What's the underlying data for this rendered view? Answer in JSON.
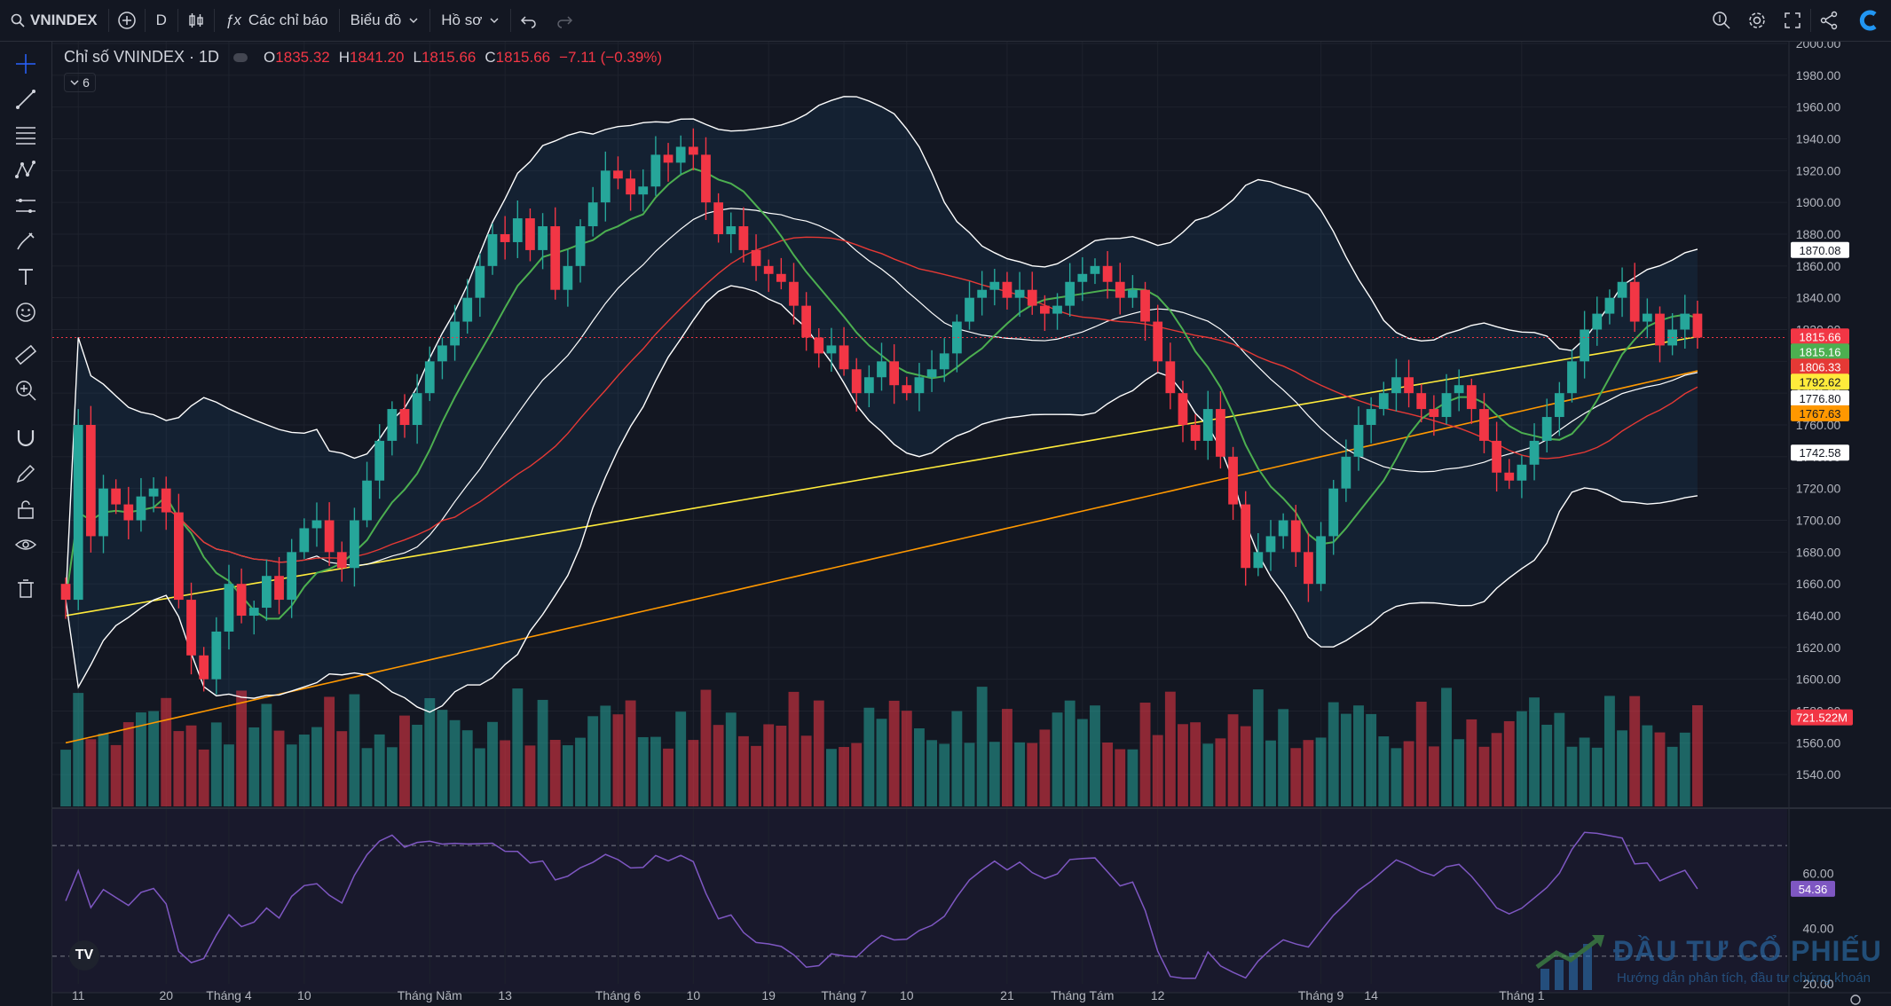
{
  "toolbar": {
    "symbol": "VNINDEX",
    "interval": "D",
    "indicators_label": "Các chỉ báo",
    "chart_label": "Biểu đồ",
    "profile_label": "Hồ sơ"
  },
  "legend": {
    "title": "Chỉ số VNINDEX · 1D",
    "o_label": "O",
    "o": "1835.32",
    "h_label": "H",
    "h": "1841.20",
    "l_label": "L",
    "l": "1815.66",
    "c_label": "C",
    "c": "1815.66",
    "change": "−7.11 (−0.39%)",
    "collapsed_count": "6"
  },
  "watermark": {
    "title": "ĐẦU TƯ CỔ PHIẾU",
    "subtitle": "Hướng dẫn phân tích, đầu tư chứng khoán"
  },
  "colors": {
    "background": "#131722",
    "up": "#26a69a",
    "down": "#f23645",
    "ma_fast": "#4caf50",
    "ma_mid": "#e53935",
    "ma_long": "#ffeb3b",
    "ma_200": "#ff9800",
    "bands": "#ffffff",
    "rsi": "#7e57c2"
  },
  "price_badges": [
    {
      "value": "1870.08",
      "price": 1870.08,
      "bg": "#ffffff",
      "fg": "#131722"
    },
    {
      "value": "1815.66",
      "price": 1815.66,
      "bg": "#f23645",
      "fg": "#ffffff"
    },
    {
      "value": "1815.16",
      "price": 1815.16,
      "bg": "#4caf50",
      "fg": "#ffffff"
    },
    {
      "value": "1806.33",
      "price": 1806.33,
      "bg": "#e53935",
      "fg": "#ffffff"
    },
    {
      "value": "1792.62",
      "price": 1792.62,
      "bg": "#ffeb3b",
      "fg": "#131722"
    },
    {
      "value": "1776.80",
      "price": 1776.8,
      "bg": "#ffffff",
      "fg": "#131722"
    },
    {
      "value": "1767.63",
      "price": 1767.63,
      "bg": "#ff9800",
      "fg": "#131722"
    },
    {
      "value": "1742.58",
      "price": 1742.58,
      "bg": "#ffffff",
      "fg": "#131722"
    }
  ],
  "volume_badge": "721.522M",
  "rsi_badge": {
    "value": "54.36",
    "level": 54.36
  },
  "chart_data": {
    "type": "candlestick",
    "ylim": [
      1520,
      2000
    ],
    "y_ticks": [
      1540,
      1560,
      1580,
      1600,
      1620,
      1640,
      1660,
      1680,
      1700,
      1720,
      1740,
      1760,
      1780,
      1800,
      1820,
      1840,
      1860,
      1880,
      1900,
      1920,
      1940,
      1960,
      1980,
      2000
    ],
    "x_labels": [
      {
        "label": "11",
        "index": 1
      },
      {
        "label": "20",
        "index": 8
      },
      {
        "label": "Tháng 4",
        "index": 13
      },
      {
        "label": "10",
        "index": 19
      },
      {
        "label": "Tháng Năm",
        "index": 29
      },
      {
        "label": "13",
        "index": 35
      },
      {
        "label": "Tháng 6",
        "index": 44
      },
      {
        "label": "10",
        "index": 50
      },
      {
        "label": "19",
        "index": 56
      },
      {
        "label": "Tháng 7",
        "index": 62
      },
      {
        "label": "10",
        "index": 67
      },
      {
        "label": "21",
        "index": 75
      },
      {
        "label": "Tháng Tám",
        "index": 81
      },
      {
        "label": "12",
        "index": 87
      },
      {
        "label": "Tháng 9",
        "index": 100
      },
      {
        "label": "14",
        "index": 104
      },
      {
        "label": "Tháng 1",
        "index": 116
      }
    ],
    "ohlc_closes": [
      1650,
      1760,
      1690,
      1720,
      1710,
      1700,
      1715,
      1720,
      1705,
      1650,
      1615,
      1600,
      1630,
      1660,
      1640,
      1645,
      1665,
      1650,
      1680,
      1695,
      1700,
      1680,
      1670,
      1700,
      1725,
      1750,
      1770,
      1760,
      1780,
      1800,
      1810,
      1825,
      1840,
      1860,
      1880,
      1875,
      1890,
      1870,
      1885,
      1845,
      1860,
      1885,
      1900,
      1920,
      1915,
      1905,
      1910,
      1930,
      1925,
      1935,
      1930,
      1900,
      1880,
      1885,
      1870,
      1860,
      1855,
      1850,
      1835,
      1815,
      1805,
      1810,
      1795,
      1780,
      1790,
      1800,
      1785,
      1780,
      1790,
      1795,
      1805,
      1825,
      1840,
      1845,
      1850,
      1840,
      1845,
      1835,
      1830,
      1835,
      1850,
      1855,
      1860,
      1850,
      1840,
      1845,
      1825,
      1800,
      1780,
      1760,
      1750,
      1770,
      1740,
      1710,
      1670,
      1680,
      1690,
      1700,
      1680,
      1660,
      1690,
      1720,
      1740,
      1760,
      1770,
      1780,
      1790,
      1780,
      1770,
      1765,
      1780,
      1785,
      1770,
      1750,
      1730,
      1725,
      1735,
      1750,
      1765,
      1780,
      1800,
      1820,
      1830,
      1840,
      1850,
      1825,
      1830,
      1810,
      1820,
      1830,
      1815
    ],
    "rsi_ylim": [
      20,
      80
    ],
    "rsi_levels": [
      30,
      70
    ],
    "rsi_ticks": [
      20,
      40,
      60
    ],
    "series_names": [
      "MA fast",
      "MA mid",
      "MA long",
      "MA 200",
      "Bollinger Bands",
      "Volume",
      "RSI"
    ]
  }
}
